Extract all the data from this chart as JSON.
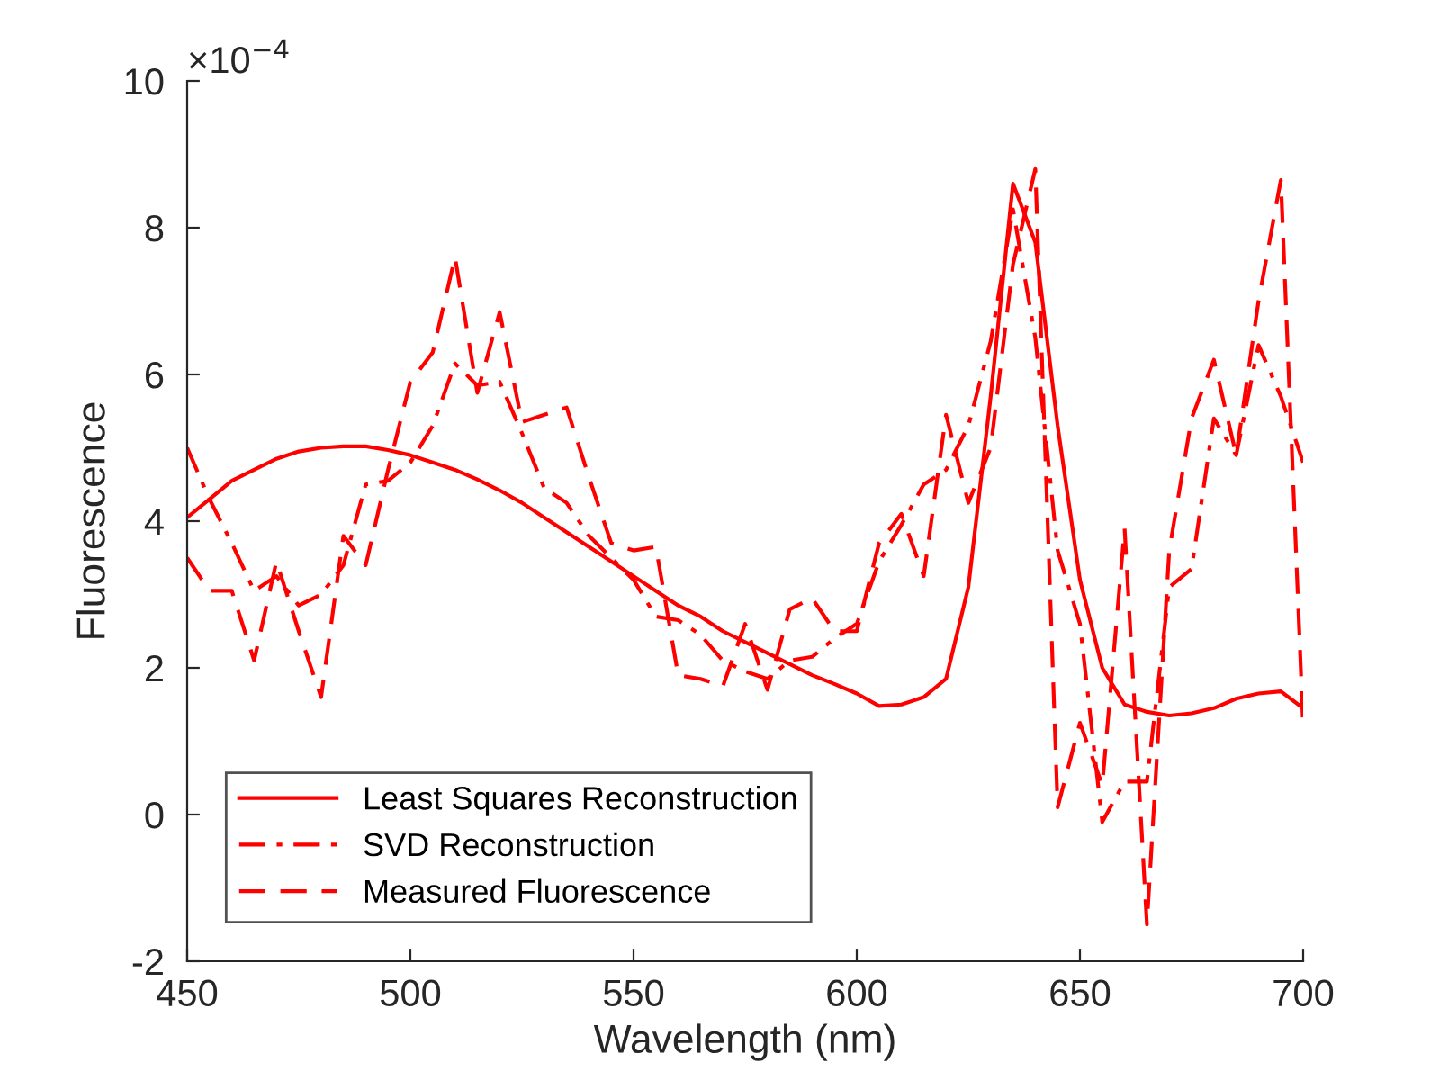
{
  "chart_data": {
    "type": "line",
    "xlabel": "Wavelength (nm)",
    "ylabel": "Fluorescence",
    "annotations": [
      "×10$^{−4}$"
    ],
    "x": [
      450,
      455,
      460,
      465,
      470,
      475,
      480,
      485,
      490,
      495,
      500,
      505,
      510,
      515,
      520,
      525,
      530,
      535,
      540,
      545,
      550,
      555,
      560,
      565,
      570,
      575,
      580,
      585,
      590,
      595,
      600,
      605,
      610,
      615,
      620,
      625,
      630,
      635,
      640,
      645,
      650,
      655,
      660,
      665,
      670,
      675,
      680,
      685,
      690,
      695,
      700
    ],
    "series": [
      {
        "name": "Least Squares Reconstruction",
        "color": "#ff0000",
        "line_style": "solid",
        "values": [
          4.05,
          4.3,
          4.55,
          4.7,
          4.85,
          4.95,
          5.0,
          5.02,
          5.02,
          4.97,
          4.9,
          4.8,
          4.7,
          4.57,
          4.42,
          4.25,
          4.05,
          3.85,
          3.65,
          3.45,
          3.25,
          3.05,
          2.85,
          2.7,
          2.5,
          2.35,
          2.2,
          2.05,
          1.9,
          1.78,
          1.65,
          1.48,
          1.5,
          1.6,
          1.85,
          3.1,
          5.7,
          8.6,
          7.8,
          5.3,
          3.2,
          2.0,
          1.5,
          1.4,
          1.35,
          1.38,
          1.45,
          1.58,
          1.65,
          1.68,
          1.45
        ]
      },
      {
        "name": "SVD Reconstruction",
        "color": "#ff0000",
        "line_style": "dashdot",
        "values": [
          5.0,
          4.3,
          3.7,
          3.05,
          3.25,
          2.85,
          3.0,
          3.4,
          4.5,
          4.55,
          4.8,
          5.3,
          6.15,
          5.85,
          5.9,
          5.2,
          4.45,
          4.25,
          3.8,
          3.5,
          3.2,
          2.7,
          2.65,
          2.45,
          2.1,
          1.95,
          1.85,
          2.1,
          2.15,
          2.4,
          2.6,
          3.45,
          3.95,
          4.5,
          4.7,
          5.3,
          6.45,
          8.25,
          6.5,
          3.6,
          2.6,
          -0.1,
          0.45,
          0.45,
          3.1,
          3.35,
          5.4,
          4.9,
          6.4,
          5.7,
          4.8
        ]
      },
      {
        "name": "Measured Fluorescence",
        "color": "#ff0000",
        "line_style": "dashed",
        "values": [
          3.5,
          3.05,
          3.05,
          2.1,
          3.45,
          2.5,
          1.6,
          3.8,
          3.4,
          4.7,
          5.9,
          6.3,
          7.6,
          5.75,
          6.85,
          5.35,
          5.45,
          5.55,
          4.6,
          3.7,
          3.6,
          3.65,
          1.9,
          1.85,
          1.75,
          2.6,
          1.7,
          2.8,
          2.95,
          2.5,
          2.5,
          3.7,
          4.1,
          3.25,
          5.45,
          4.25,
          5.0,
          7.5,
          8.8,
          0.1,
          1.25,
          0.4,
          3.9,
          -1.5,
          3.6,
          5.4,
          6.2,
          4.9,
          7.0,
          8.65,
          1.2
        ]
      }
    ],
    "xlim": [
      450,
      700
    ],
    "xticks": [
      450,
      500,
      550,
      600,
      650,
      700
    ],
    "ylim": [
      -2,
      10
    ],
    "yticks": [
      -2,
      0,
      2,
      4,
      6,
      8,
      10
    ],
    "legend": "bottom left",
    "grid": false
  }
}
